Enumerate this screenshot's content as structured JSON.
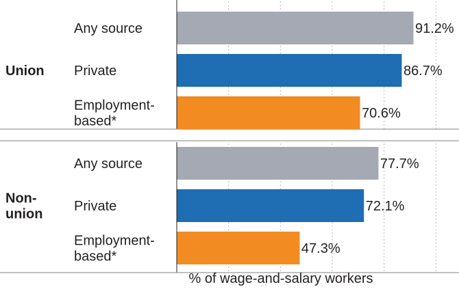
{
  "chart_data": {
    "type": "bar",
    "orientation": "horizontal",
    "xlabel": "% of wage-and-salary workers",
    "xlim": [
      0,
      100
    ],
    "grid": "vertical dotted",
    "groups": [
      {
        "label_lines": [
          "Union"
        ],
        "bars": [
          {
            "category_lines": [
              "Any source"
            ],
            "value": 91.2,
            "value_label": "91.2%",
            "color": "#a5a9b4"
          },
          {
            "category_lines": [
              "Private"
            ],
            "value": 86.7,
            "value_label": "86.7%",
            "color": "#1f6db3"
          },
          {
            "category_lines": [
              "Employment-",
              "based*"
            ],
            "value": 70.6,
            "value_label": "70.6%",
            "color": "#f28b21"
          }
        ]
      },
      {
        "label_lines": [
          "Non-",
          "union"
        ],
        "bars": [
          {
            "category_lines": [
              "Any source"
            ],
            "value": 77.7,
            "value_label": "77.7%",
            "color": "#a5a9b4"
          },
          {
            "category_lines": [
              "Private"
            ],
            "value": 72.1,
            "value_label": "72.1%",
            "color": "#1f6db3"
          },
          {
            "category_lines": [
              "Employment-",
              "based*"
            ],
            "value": 47.3,
            "value_label": "47.3%",
            "color": "#f28b21"
          }
        ]
      }
    ]
  }
}
